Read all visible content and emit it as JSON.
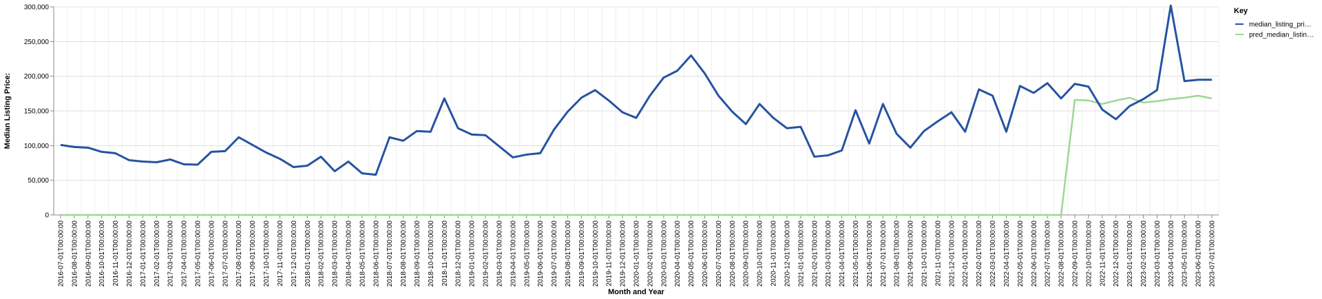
{
  "chart_data": {
    "type": "line",
    "xlabel": "Month and Year",
    "ylabel": "Median Listing Price:",
    "ylim": [
      0,
      300000
    ],
    "yticks": [
      0,
      50000,
      100000,
      150000,
      200000,
      250000,
      300000
    ],
    "ytick_labels": [
      "0",
      "50,000",
      "100,000",
      "150,000",
      "200,000",
      "250,000",
      "300,000"
    ],
    "grid": true,
    "legend": {
      "title": "Key",
      "position": "right"
    },
    "x": [
      "2016-07-01T00:00:00",
      "2016-08-01T00:00:00",
      "2016-09-01T00:00:00",
      "2016-10-01T00:00:00",
      "2016-11-01T00:00:00",
      "2016-12-01T00:00:00",
      "2017-01-01T00:00:00",
      "2017-02-01T00:00:00",
      "2017-03-01T00:00:00",
      "2017-04-01T00:00:00",
      "2017-05-01T00:00:00",
      "2017-06-01T00:00:00",
      "2017-07-01T00:00:00",
      "2017-08-01T00:00:00",
      "2017-09-01T00:00:00",
      "2017-10-01T00:00:00",
      "2017-11-01T00:00:00",
      "2017-12-01T00:00:00",
      "2018-01-01T00:00:00",
      "2018-02-01T00:00:00",
      "2018-03-01T00:00:00",
      "2018-04-01T00:00:00",
      "2018-05-01T00:00:00",
      "2018-06-01T00:00:00",
      "2018-07-01T00:00:00",
      "2018-08-01T00:00:00",
      "2018-09-01T00:00:00",
      "2018-10-01T00:00:00",
      "2018-11-01T00:00:00",
      "2018-12-01T00:00:00",
      "2019-01-01T00:00:00",
      "2019-02-01T00:00:00",
      "2019-03-01T00:00:00",
      "2019-04-01T00:00:00",
      "2019-05-01T00:00:00",
      "2019-06-01T00:00:00",
      "2019-07-01T00:00:00",
      "2019-08-01T00:00:00",
      "2019-09-01T00:00:00",
      "2019-10-01T00:00:00",
      "2019-11-01T00:00:00",
      "2019-12-01T00:00:00",
      "2020-01-01T00:00:00",
      "2020-02-01T00:00:00",
      "2020-03-01T00:00:00",
      "2020-04-01T00:00:00",
      "2020-05-01T00:00:00",
      "2020-06-01T00:00:00",
      "2020-07-01T00:00:00",
      "2020-08-01T00:00:00",
      "2020-09-01T00:00:00",
      "2020-10-01T00:00:00",
      "2020-11-01T00:00:00",
      "2020-12-01T00:00:00",
      "2021-01-01T00:00:00",
      "2021-02-01T00:00:00",
      "2021-03-01T00:00:00",
      "2021-04-01T00:00:00",
      "2021-05-01T00:00:00",
      "2021-06-01T00:00:00",
      "2021-07-01T00:00:00",
      "2021-08-01T00:00:00",
      "2021-09-01T00:00:00",
      "2021-10-01T00:00:00",
      "2021-11-01T00:00:00",
      "2021-12-01T00:00:00",
      "2022-01-01T00:00:00",
      "2022-02-01T00:00:00",
      "2022-03-01T00:00:00",
      "2022-04-01T00:00:00",
      "2022-05-01T00:00:00",
      "2022-06-01T00:00:00",
      "2022-07-01T00:00:00",
      "2022-08-01T00:00:00",
      "2022-09-01T00:00:00",
      "2022-10-01T00:00:00",
      "2022-11-01T00:00:00",
      "2022-12-01T00:00:00",
      "2023-01-01T00:00:00",
      "2023-02-01T00:00:00",
      "2023-03-01T00:00:00",
      "2023-04-01T00:00:00",
      "2023-05-01T00:00:00",
      "2023-06-01T00:00:00",
      "2023-07-01T00:00:00"
    ],
    "series": [
      {
        "name": "median_listing_pri…",
        "color": "#2553a0",
        "values": [
          101000,
          98000,
          97000,
          91000,
          89000,
          79000,
          77000,
          76000,
          80000,
          73000,
          72500,
          91000,
          92000,
          112000,
          101000,
          90000,
          81000,
          69000,
          71000,
          84000,
          63000,
          77000,
          60000,
          58000,
          112000,
          107000,
          121000,
          120000,
          168000,
          125000,
          116000,
          115000,
          99000,
          83000,
          87000,
          89000,
          123000,
          149000,
          169000,
          180000,
          165000,
          148000,
          140000,
          172000,
          198000,
          208000,
          230000,
          204000,
          172000,
          149000,
          131000,
          160000,
          140000,
          125000,
          127000,
          84000,
          86000,
          93000,
          151000,
          103000,
          160000,
          117000,
          97000,
          121000,
          135000,
          148000,
          120000,
          181000,
          172000,
          120000,
          186000,
          176000,
          190000,
          168000,
          189000,
          185000,
          152000,
          138000,
          157000,
          167000,
          180000,
          302000,
          193000,
          195000,
          195000
        ]
      },
      {
        "name": "pred_median_listin…",
        "color": "#9fd694",
        "values": [
          0,
          0,
          0,
          0,
          0,
          0,
          0,
          0,
          0,
          0,
          0,
          0,
          0,
          0,
          0,
          0,
          0,
          0,
          0,
          0,
          0,
          0,
          0,
          0,
          0,
          0,
          0,
          0,
          0,
          0,
          0,
          0,
          0,
          0,
          0,
          0,
          0,
          0,
          0,
          0,
          0,
          0,
          0,
          0,
          0,
          0,
          0,
          0,
          0,
          0,
          0,
          0,
          0,
          0,
          0,
          0,
          0,
          0,
          0,
          0,
          0,
          0,
          0,
          0,
          0,
          0,
          0,
          0,
          0,
          0,
          0,
          0,
          0,
          0,
          166000,
          165000,
          160000,
          165000,
          169000,
          162000,
          164000,
          167000,
          169000,
          172000,
          168000
        ]
      }
    ]
  }
}
